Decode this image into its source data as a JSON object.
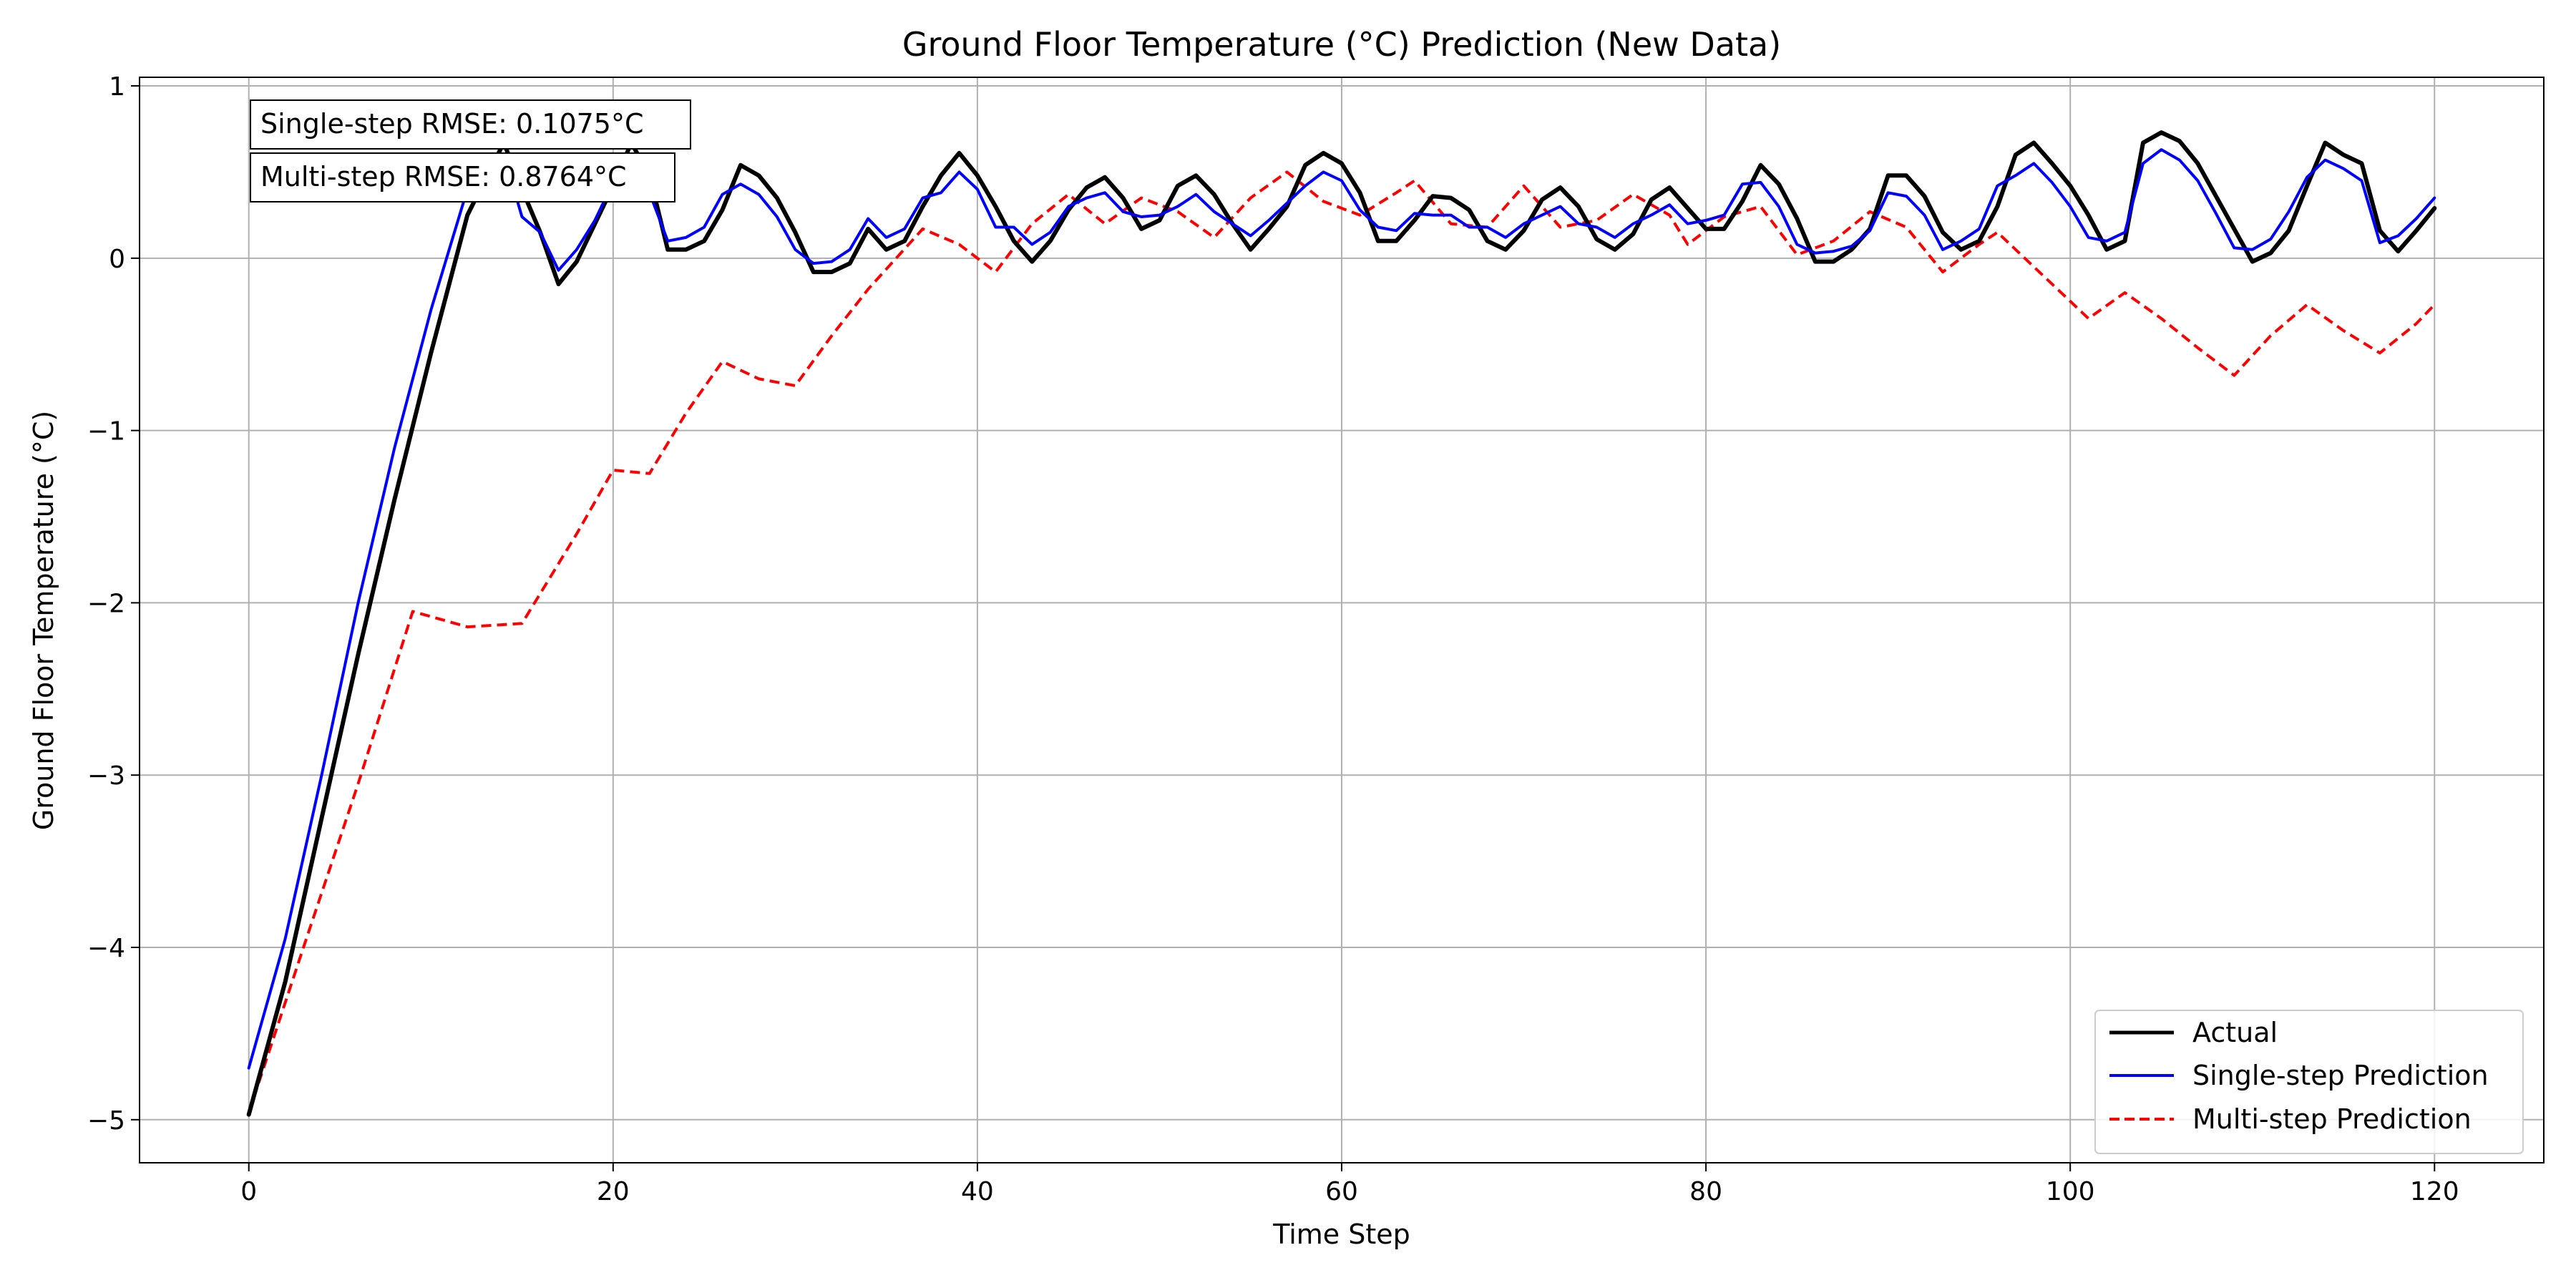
{
  "chart_data": {
    "type": "line",
    "title": "Ground Floor Temperature (°C) Prediction (New Data)",
    "xlabel": "Time Step",
    "ylabel": "Ground Floor Temperature (°C)",
    "xlim": [
      -6,
      126
    ],
    "ylim": [
      -5.25,
      1.05
    ],
    "xticks": [
      0,
      20,
      40,
      60,
      80,
      100,
      120
    ],
    "xtick_labels": [
      "0",
      "20",
      "40",
      "60",
      "80",
      "100",
      "120"
    ],
    "yticks": [
      1,
      0,
      -1,
      -2,
      -3,
      -4,
      -5
    ],
    "ytick_labels": [
      "1",
      "0",
      "−1",
      "−2",
      "−3",
      "−4",
      "−5"
    ],
    "grid": true,
    "legend_position": "lower-right",
    "annotations": [
      "Single-step RMSE: 0.1075°C",
      "Multi-step RMSE: 0.8764°C"
    ],
    "series": [
      {
        "name": "Actual",
        "color": "#000000",
        "style": "solid",
        "x": [
          0,
          2,
          4,
          6,
          8,
          10,
          12,
          14,
          15,
          16,
          17,
          18,
          19,
          20,
          21,
          22,
          23,
          24,
          25,
          26,
          27,
          28,
          29,
          30,
          31,
          32,
          33,
          34,
          35,
          36,
          37,
          38,
          39,
          40,
          41,
          42,
          43,
          44,
          45,
          46,
          47,
          48,
          49,
          50,
          51,
          52,
          53,
          54,
          55,
          56,
          57,
          58,
          59,
          60,
          61,
          62,
          63,
          64,
          65,
          66,
          67,
          68,
          69,
          70,
          71,
          72,
          73,
          74,
          75,
          76,
          77,
          78,
          79,
          80,
          81,
          82,
          83,
          84,
          85,
          86,
          87,
          88,
          89,
          90,
          91,
          92,
          93,
          94,
          95,
          96,
          97,
          98,
          99,
          100,
          101,
          102,
          103,
          104,
          105,
          106,
          107,
          108,
          109,
          110,
          111,
          112,
          113,
          114,
          115,
          116,
          117,
          118,
          119,
          120
        ],
        "values": [
          -4.97,
          -4.2,
          -3.25,
          -2.3,
          -1.4,
          -0.55,
          0.25,
          0.67,
          0.4,
          0.15,
          -0.15,
          -0.02,
          0.2,
          0.42,
          0.67,
          0.48,
          0.05,
          0.05,
          0.1,
          0.28,
          0.54,
          0.48,
          0.35,
          0.15,
          -0.08,
          -0.08,
          -0.03,
          0.17,
          0.05,
          0.1,
          0.3,
          0.48,
          0.61,
          0.48,
          0.3,
          0.1,
          -0.02,
          0.1,
          0.28,
          0.41,
          0.47,
          0.35,
          0.17,
          0.22,
          0.42,
          0.48,
          0.37,
          0.2,
          0.05,
          0.17,
          0.3,
          0.54,
          0.61,
          0.55,
          0.38,
          0.1,
          0.1,
          0.22,
          0.36,
          0.35,
          0.28,
          0.1,
          0.05,
          0.16,
          0.34,
          0.41,
          0.3,
          0.11,
          0.05,
          0.14,
          0.34,
          0.41,
          0.29,
          0.17,
          0.17,
          0.33,
          0.54,
          0.43,
          0.23,
          -0.02,
          -0.02,
          0.05,
          0.17,
          0.48,
          0.48,
          0.36,
          0.15,
          0.05,
          0.1,
          0.3,
          0.6,
          0.67,
          0.55,
          0.42,
          0.25,
          0.05,
          0.1,
          0.67,
          0.73,
          0.68,
          0.55,
          0.36,
          0.17,
          -0.02,
          0.03,
          0.16,
          0.42,
          0.67,
          0.6,
          0.55,
          0.16,
          0.04,
          0.16,
          0.29
        ]
      },
      {
        "name": "Single-step Prediction",
        "color": "#0000ff",
        "style": "solid",
        "x": [
          0,
          2,
          4,
          6,
          8,
          10,
          12,
          14,
          15,
          16,
          17,
          18,
          19,
          20,
          21,
          22,
          23,
          24,
          25,
          26,
          27,
          28,
          29,
          30,
          31,
          32,
          33,
          34,
          35,
          36,
          37,
          38,
          39,
          40,
          41,
          42,
          43,
          44,
          45,
          46,
          47,
          48,
          49,
          50,
          51,
          52,
          53,
          54,
          55,
          56,
          57,
          58,
          59,
          60,
          61,
          62,
          63,
          64,
          65,
          66,
          67,
          68,
          69,
          70,
          71,
          72,
          73,
          74,
          75,
          76,
          77,
          78,
          79,
          80,
          81,
          82,
          83,
          84,
          85,
          86,
          87,
          88,
          89,
          90,
          91,
          92,
          93,
          94,
          95,
          96,
          97,
          98,
          99,
          100,
          101,
          102,
          103,
          104,
          105,
          106,
          107,
          108,
          109,
          110,
          111,
          112,
          113,
          114,
          115,
          116,
          117,
          118,
          119,
          120
        ],
        "values": [
          -4.7,
          -3.95,
          -3.0,
          -2.0,
          -1.1,
          -0.3,
          0.4,
          0.6,
          0.24,
          0.15,
          -0.07,
          0.05,
          0.22,
          0.44,
          0.55,
          0.38,
          0.1,
          0.12,
          0.18,
          0.37,
          0.43,
          0.37,
          0.24,
          0.05,
          -0.03,
          -0.02,
          0.05,
          0.23,
          0.12,
          0.17,
          0.35,
          0.38,
          0.5,
          0.4,
          0.18,
          0.18,
          0.08,
          0.15,
          0.3,
          0.35,
          0.38,
          0.27,
          0.24,
          0.25,
          0.3,
          0.37,
          0.27,
          0.2,
          0.13,
          0.22,
          0.32,
          0.42,
          0.5,
          0.45,
          0.28,
          0.18,
          0.16,
          0.26,
          0.25,
          0.25,
          0.18,
          0.18,
          0.12,
          0.2,
          0.25,
          0.3,
          0.2,
          0.18,
          0.12,
          0.2,
          0.25,
          0.31,
          0.2,
          0.22,
          0.25,
          0.43,
          0.44,
          0.3,
          0.08,
          0.03,
          0.04,
          0.07,
          0.16,
          0.38,
          0.36,
          0.25,
          0.05,
          0.1,
          0.17,
          0.42,
          0.48,
          0.55,
          0.44,
          0.3,
          0.12,
          0.1,
          0.15,
          0.55,
          0.63,
          0.57,
          0.45,
          0.26,
          0.06,
          0.05,
          0.11,
          0.27,
          0.47,
          0.57,
          0.52,
          0.45,
          0.09,
          0.13,
          0.23,
          0.35
        ]
      },
      {
        "name": "Multi-step Prediction",
        "color": "#ff0000",
        "style": "dashed",
        "x": [
          0,
          3,
          6,
          9,
          12,
          15,
          18,
          20,
          22,
          24,
          26,
          28,
          30,
          32,
          34,
          37,
          39,
          41,
          43,
          45,
          47,
          49,
          51,
          53,
          55,
          57,
          59,
          61,
          63,
          64,
          66,
          68,
          70,
          72,
          74,
          76,
          78,
          79,
          81,
          83,
          85,
          87,
          89,
          91,
          93,
          95,
          96,
          98,
          100,
          101,
          103,
          105,
          107,
          109,
          111,
          113,
          115,
          117,
          119,
          120
        ],
        "values": [
          -4.96,
          -4.0,
          -3.05,
          -2.05,
          -2.14,
          -2.12,
          -1.6,
          -1.23,
          -1.25,
          -0.9,
          -0.6,
          -0.7,
          -0.74,
          -0.45,
          -0.18,
          0.17,
          0.08,
          -0.08,
          0.2,
          0.37,
          0.2,
          0.35,
          0.27,
          0.12,
          0.35,
          0.5,
          0.33,
          0.25,
          0.38,
          0.45,
          0.2,
          0.18,
          0.42,
          0.18,
          0.22,
          0.37,
          0.25,
          0.08,
          0.24,
          0.3,
          0.02,
          0.1,
          0.27,
          0.18,
          -0.08,
          0.08,
          0.15,
          -0.05,
          -0.25,
          -0.35,
          -0.2,
          -0.35,
          -0.52,
          -0.68,
          -0.45,
          -0.27,
          -0.42,
          -0.55,
          -0.38,
          -0.27
        ]
      }
    ]
  }
}
